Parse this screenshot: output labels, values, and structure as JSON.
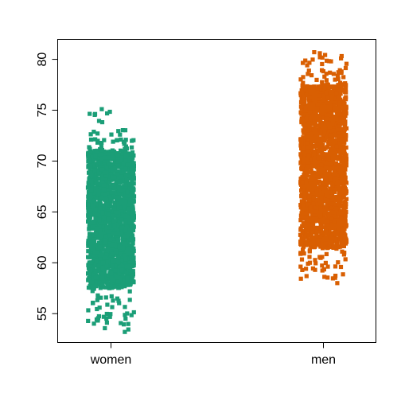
{
  "chart_data": {
    "type": "scatter",
    "subtype": "strip-chart-jittered",
    "title": "",
    "xlabel": "",
    "ylabel": "",
    "categories": [
      "women",
      "men"
    ],
    "ylim": [
      52.2,
      82.0
    ],
    "y_ticks": [
      55,
      60,
      65,
      70,
      75,
      80
    ],
    "grid": false,
    "legend": "none",
    "series": [
      {
        "category": "women",
        "color": "#1b9e77",
        "dense_range": [
          57.5,
          71.0
        ],
        "extremes": [
          53.2,
          75.1
        ]
      },
      {
        "category": "men",
        "color": "#d95f02",
        "dense_range": [
          61.5,
          77.5
        ],
        "extremes": [
          58.0,
          80.7
        ]
      }
    ]
  }
}
